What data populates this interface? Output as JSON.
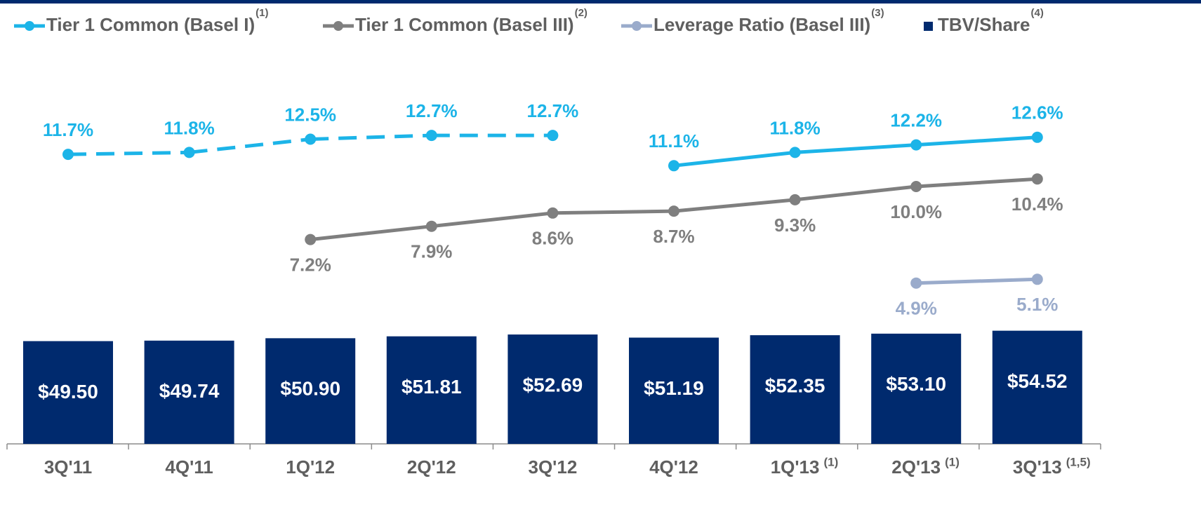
{
  "chart_data": {
    "type": "bar-line",
    "categories": [
      "3Q'11",
      "4Q'11",
      "1Q'12",
      "2Q'12",
      "3Q'12",
      "4Q'12",
      "1Q'13",
      "2Q'13",
      "3Q'13"
    ],
    "category_notes": [
      null,
      null,
      null,
      null,
      null,
      null,
      "(1)",
      "(1)",
      "(1,5)"
    ],
    "series": [
      {
        "name": "Tier 1 Common (Basel I)",
        "note": "(1)",
        "kind": "line",
        "color": "#1cb4e8",
        "values": [
          11.7,
          11.8,
          12.5,
          12.7,
          12.7,
          11.1,
          11.8,
          12.2,
          12.6
        ],
        "value_labels": [
          "11.7%",
          "11.8%",
          "12.5%",
          "12.7%",
          "12.7%",
          "11.1%",
          "11.8%",
          "12.2%",
          "12.6%"
        ],
        "line_styles": [
          "dashed",
          "dashed",
          "dashed",
          "dashed",
          "dashed",
          "solid",
          "solid",
          "solid",
          "solid"
        ],
        "label_position": "above"
      },
      {
        "name": "Tier 1 Common (Basel III)",
        "note": "(2)",
        "kind": "line",
        "color": "#7f7f7f",
        "values": [
          null,
          null,
          7.2,
          7.9,
          8.6,
          8.7,
          9.3,
          10.0,
          10.4
        ],
        "value_labels": [
          null,
          null,
          "7.2%",
          "7.9%",
          "8.6%",
          "8.7%",
          "9.3%",
          "10.0%",
          "10.4%"
        ],
        "label_position": "below"
      },
      {
        "name": "Leverage Ratio (Basel III)",
        "note": "(3)",
        "kind": "line",
        "color": "#9aabcb",
        "values": [
          null,
          null,
          null,
          null,
          null,
          null,
          null,
          4.9,
          5.1
        ],
        "value_labels": [
          null,
          null,
          null,
          null,
          null,
          null,
          null,
          "4.9%",
          "5.1%"
        ],
        "label_position": "below"
      },
      {
        "name": "TBV/Share",
        "note": "(4)",
        "kind": "bar",
        "color": "#002a6e",
        "values": [
          49.5,
          49.74,
          50.9,
          51.81,
          52.69,
          51.19,
          52.35,
          53.1,
          54.52
        ],
        "value_labels": [
          "$49.50",
          "$49.74",
          "$50.90",
          "$51.81",
          "$52.69",
          "$51.19",
          "$52.35",
          "$53.10",
          "$54.52"
        ]
      }
    ]
  }
}
